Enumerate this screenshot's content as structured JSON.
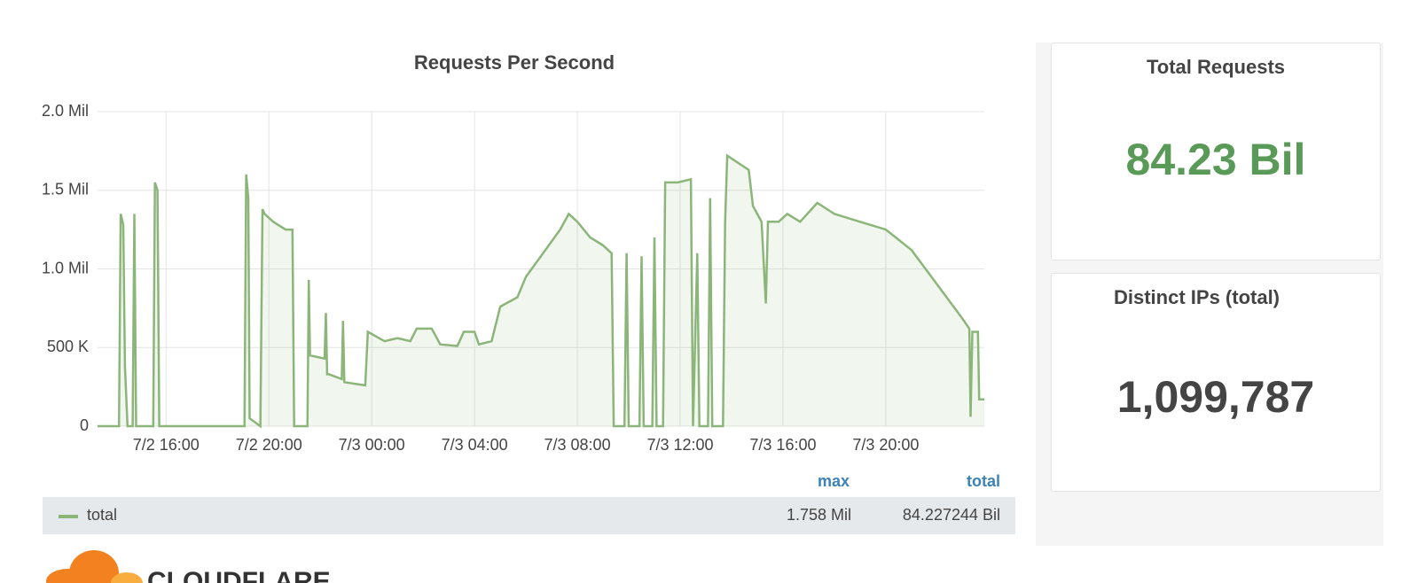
{
  "chart_data": {
    "type": "line",
    "title": "Requests Per Second",
    "x": [
      "7/2 13:20",
      "7/2 14:10",
      "7/2 14:14",
      "7/2 14:20",
      "7/2 14:24",
      "7/2 14:30",
      "7/2 14:42",
      "7/2 14:46",
      "7/2 14:50",
      "7/2 15:30",
      "7/2 15:34",
      "7/2 15:40",
      "7/2 15:44",
      "7/2 19:03",
      "7/2 19:07",
      "7/2 19:12",
      "7/2 19:15",
      "7/2 19:40",
      "7/2 19:45",
      "7/2 19:50",
      "7/2 20:10",
      "7/2 20:39",
      "7/2 20:55",
      "7/2 20:59",
      "7/2 21:30",
      "7/2 21:33",
      "7/2 21:36",
      "7/2 22:10",
      "7/2 22:13",
      "7/2 22:16",
      "7/2 22:20",
      "7/2 22:50",
      "7/2 22:53",
      "7/2 22:56",
      "7/2 23:20",
      "7/2 23:45",
      "7/2 23:51",
      "7/3 00:30",
      "7/3 01:00",
      "7/3 01:30",
      "7/3 01:45",
      "7/3 02:20",
      "7/3 02:40",
      "7/3 03:20",
      "7/3 03:35",
      "7/3 04:00",
      "7/3 04:10",
      "7/3 04:40",
      "7/3 05:00",
      "7/3 05:40",
      "7/3 06:00",
      "7/3 06:40",
      "7/3 07:20",
      "7/3 07:40",
      "7/3 08:00",
      "7/3 08:30",
      "7/3 09:00",
      "7/3 09:20",
      "7/3 09:25",
      "7/3 09:50",
      "7/3 09:55",
      "7/3 10:00",
      "7/3 10:25",
      "7/3 10:30",
      "7/3 10:35",
      "7/3 10:55",
      "7/3 11:00",
      "7/3 11:05",
      "7/3 11:20",
      "7/3 11:25",
      "7/3 11:55",
      "7/3 12:25",
      "7/3 12:30",
      "7/3 12:40",
      "7/3 12:45",
      "7/3 13:05",
      "7/3 13:10",
      "7/3 13:15",
      "7/3 13:40",
      "7/3 13:45",
      "7/3 13:50",
      "7/3 14:40",
      "7/3 14:50",
      "7/3 15:10",
      "7/3 15:20",
      "7/3 15:25",
      "7/3 15:50",
      "7/3 16:10",
      "7/3 16:40",
      "7/3 17:20",
      "7/3 18:00",
      "7/3 19:00",
      "7/3 20:00",
      "7/3 21:00",
      "7/3 22:00",
      "7/3 23:00",
      "7/3 23:15",
      "7/3 23:18",
      "7/3 23:22",
      "7/3 23:35",
      "7/3 23:38",
      "7/3 23:50"
    ],
    "series": [
      {
        "name": "total",
        "color": "#8cb57a",
        "values": [
          0,
          0,
          1350000,
          1280000,
          380000,
          0,
          0,
          1350000,
          0,
          0,
          1550000,
          1500000,
          0,
          0,
          1600000,
          1450000,
          50000,
          0,
          1380000,
          1350000,
          1300000,
          1250000,
          1250000,
          0,
          0,
          930000,
          450000,
          430000,
          720000,
          330000,
          330000,
          300000,
          670000,
          280000,
          270000,
          260000,
          600000,
          540000,
          560000,
          540000,
          620000,
          620000,
          520000,
          510000,
          600000,
          600000,
          520000,
          540000,
          760000,
          820000,
          950000,
          1100000,
          1250000,
          1350000,
          1300000,
          1200000,
          1150000,
          1100000,
          0,
          0,
          1100000,
          0,
          0,
          1080000,
          0,
          0,
          1200000,
          0,
          0,
          1550000,
          1550000,
          1570000,
          0,
          1100000,
          0,
          0,
          1450000,
          0,
          0,
          1300000,
          1720000,
          1630000,
          1400000,
          1300000,
          780000,
          1300000,
          1300000,
          1350000,
          1300000,
          1420000,
          1350000,
          1300000,
          1250000,
          1120000,
          900000,
          680000,
          620000,
          60000,
          600000,
          600000,
          170000,
          170000
        ]
      }
    ],
    "xlim": [
      "7/2 13:20",
      "7/3 23:50"
    ],
    "xticks": [
      "7/2 16:00",
      "7/2 20:00",
      "7/3 00:00",
      "7/3 04:00",
      "7/3 08:00",
      "7/3 12:00",
      "7/3 16:00",
      "7/3 20:00"
    ],
    "ylim": [
      0,
      2000000
    ],
    "yticks": [
      0,
      {
        "value": 500000,
        "label": "500 K"
      },
      {
        "value": 1000000,
        "label": "1.0 Mil"
      },
      {
        "value": 1500000,
        "label": "1.5 Mil"
      },
      {
        "value": 2000000,
        "label": "2.0 Mil"
      }
    ],
    "grid": true,
    "legend": {
      "headers": [
        "max",
        "total"
      ],
      "rows": [
        {
          "name": "total",
          "max": "1.758 Mil",
          "total": "84.227244 Bil"
        }
      ]
    }
  },
  "panels": [
    {
      "title": "Total Requests",
      "value": "84.23 Bil"
    },
    {
      "title": "Distinct IPs (total)",
      "value": "1,099,787"
    }
  ],
  "logo": "CLOUDFLARE"
}
